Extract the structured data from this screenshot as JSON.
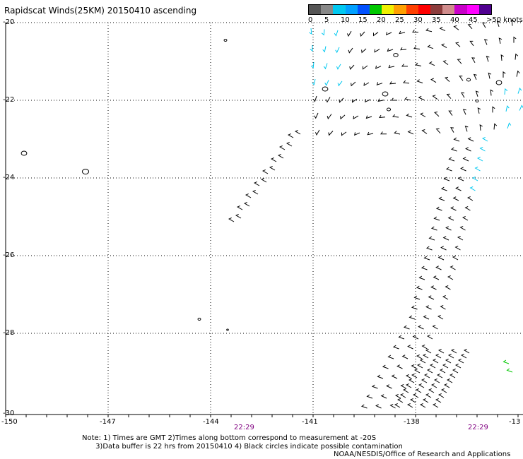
{
  "title": "Rapidscat Winds(25KM) 20150410 ascending",
  "legend": {
    "colors": [
      "#555555",
      "#888888",
      "#00c8f0",
      "#00a0ff",
      "#0050ff",
      "#00c800",
      "#f0f000",
      "#ffa000",
      "#ff4000",
      "#ff0000",
      "#8c3c3c",
      "#d08c8c",
      "#c800c8",
      "#ff00ff",
      "#500090"
    ],
    "labels": [
      "0",
      "5",
      "10",
      "15",
      "20",
      "25",
      "30",
      "35",
      "40",
      "45",
      ">50 knots"
    ]
  },
  "axes": {
    "lat_labels": [
      "-20",
      "-22",
      "-24",
      "-26",
      "-28",
      "-30"
    ],
    "lon_labels": [
      "-150",
      "-147",
      "-144",
      "-141",
      "-138",
      "-13"
    ]
  },
  "times": [
    "22:29",
    "22:29"
  ],
  "notes": [
    "Note: 1) Times are GMT 2)Times along bottom correspond to measurement at -20S",
    "      3)Data buffer is 22 hrs from 20150410 4) Black circles indicate possible contamination"
  ],
  "credit": "NOAA/NESDIS/Office of Research and Applications",
  "colors": {
    "wind_low": "#00c8f0",
    "wind_mid": "#000000",
    "wind_green": "#00c800",
    "grid": "#000000",
    "time_label": "#800080"
  }
}
